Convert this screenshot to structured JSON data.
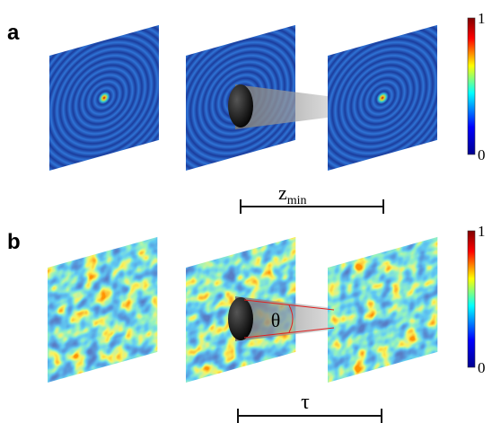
{
  "panels": [
    {
      "label": "a",
      "colorbar": {
        "max": 1,
        "min": 0
      },
      "scale_bar": {
        "symbol": "z",
        "subscript": "min"
      }
    },
    {
      "label": "b",
      "colorbar": {
        "max": 1,
        "min": 0
      },
      "angle": "θ",
      "scale_bar": {
        "symbol": "τ"
      }
    }
  ]
}
